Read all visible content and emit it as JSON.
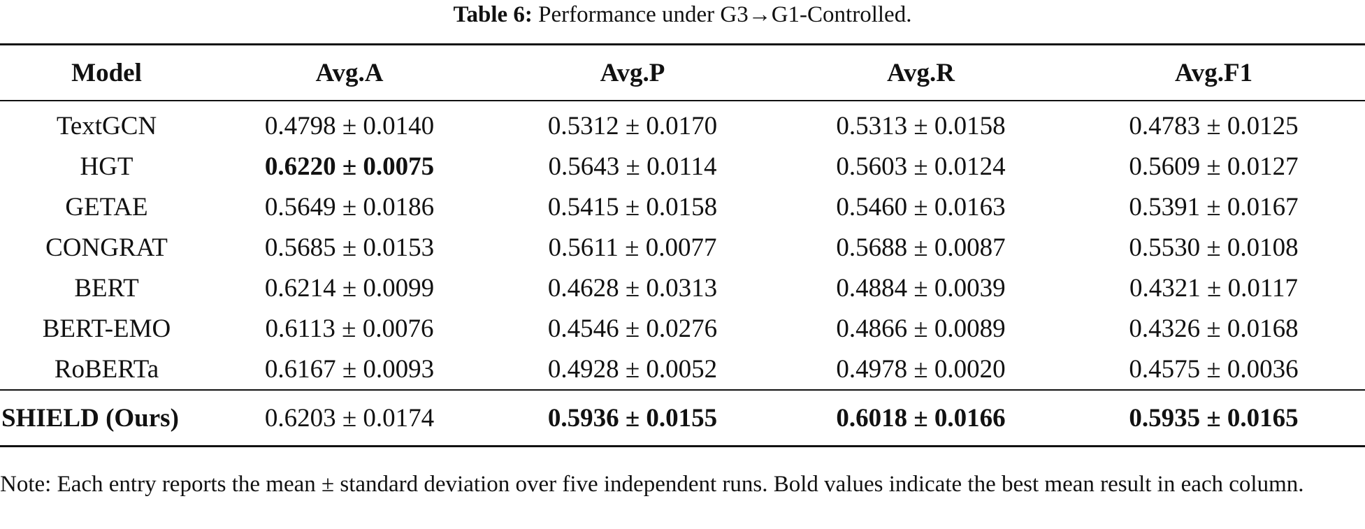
{
  "caption": {
    "label": "Table 6:",
    "text": "Performance under G3→G1-Controlled."
  },
  "headers": [
    "Model",
    "Avg.A",
    "Avg.P",
    "Avg.R",
    "Avg.F1"
  ],
  "rows": [
    {
      "model": "TextGCN",
      "avg_a": "0.4798 ± 0.0140",
      "avg_p": "0.5312 ± 0.0170",
      "avg_r": "0.5313 ± 0.0158",
      "avg_f1": "0.4783 ± 0.0125"
    },
    {
      "model": "HGT",
      "avg_a": "0.6220 ± 0.0075",
      "avg_p": "0.5643 ± 0.0114",
      "avg_r": "0.5603 ± 0.0124",
      "avg_f1": "0.5609 ± 0.0127"
    },
    {
      "model": "GETAE",
      "avg_a": "0.5649 ± 0.0186",
      "avg_p": "0.5415 ± 0.0158",
      "avg_r": "0.5460 ± 0.0163",
      "avg_f1": "0.5391 ± 0.0167"
    },
    {
      "model": "CONGRAT",
      "avg_a": "0.5685 ± 0.0153",
      "avg_p": "0.5611 ± 0.0077",
      "avg_r": "0.5688 ± 0.0087",
      "avg_f1": "0.5530 ± 0.0108"
    },
    {
      "model": "BERT",
      "avg_a": "0.6214 ± 0.0099",
      "avg_p": "0.4628 ± 0.0313",
      "avg_r": "0.4884 ± 0.0039",
      "avg_f1": "0.4321 ± 0.0117"
    },
    {
      "model": "BERT-EMO",
      "avg_a": "0.6113 ± 0.0076",
      "avg_p": "0.4546 ± 0.0276",
      "avg_r": "0.4866 ± 0.0089",
      "avg_f1": "0.4326 ± 0.0168"
    },
    {
      "model": "RoBERTa",
      "avg_a": "0.6167 ± 0.0093",
      "avg_p": "0.4928 ± 0.0052",
      "avg_r": "0.4978 ± 0.0020",
      "avg_f1": "0.4575 ± 0.0036"
    }
  ],
  "ours": {
    "model": "SHIELD (Ours)",
    "avg_a": "0.6203 ± 0.0174",
    "avg_p": "0.5936 ± 0.0155",
    "avg_r": "0.6018 ± 0.0166",
    "avg_f1": "0.5935 ± 0.0165"
  },
  "note": "Note: Each entry reports the mean ± standard deviation over five independent runs. Bold values indicate the best mean result in each column."
}
